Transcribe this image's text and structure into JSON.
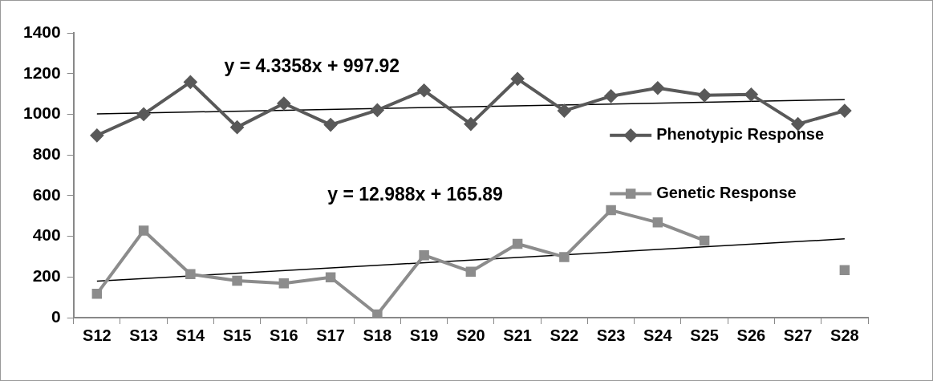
{
  "chart_data": {
    "type": "line",
    "categories": [
      "S12",
      "S13",
      "S14",
      "S15",
      "S16",
      "S17",
      "S18",
      "S19",
      "S20",
      "S21",
      "S22",
      "S23",
      "S24",
      "S25",
      "S26",
      "S27",
      "S28"
    ],
    "series": [
      {
        "name": "Phenotypic Response",
        "color": "#595959",
        "marker": "diamond",
        "values": [
          896,
          1000,
          1158,
          936,
          1053,
          948,
          1020,
          1117,
          952,
          1174,
          1017,
          1089,
          1129,
          1093,
          1097,
          952,
          1017
        ]
      },
      {
        "name": "Genetic Response",
        "color": "#8c8c8c",
        "marker": "square",
        "values": [
          117,
          428,
          214,
          181,
          169,
          198,
          16,
          307,
          226,
          363,
          298,
          528,
          468,
          379,
          null,
          null,
          234
        ]
      },
      {
        "type": "line",
        "color": "#000000",
        "marker": "none",
        "x": [
          "S12",
          "S28"
        ],
        "values": [
          1002,
          1072
        ]
      },
      {
        "type": "line",
        "color": "#000000",
        "marker": "none",
        "x": [
          "S12",
          "S28"
        ],
        "values": [
          179,
          387
        ]
      }
    ],
    "annotations": [
      "y = 4.3358x + 997.92",
      "y = 12.988x + 165.89"
    ],
    "ylim": [
      0,
      1400
    ],
    "yticks": [
      0,
      200,
      400,
      600,
      800,
      1000,
      1200,
      1400
    ],
    "grid": false,
    "legend": "right"
  }
}
